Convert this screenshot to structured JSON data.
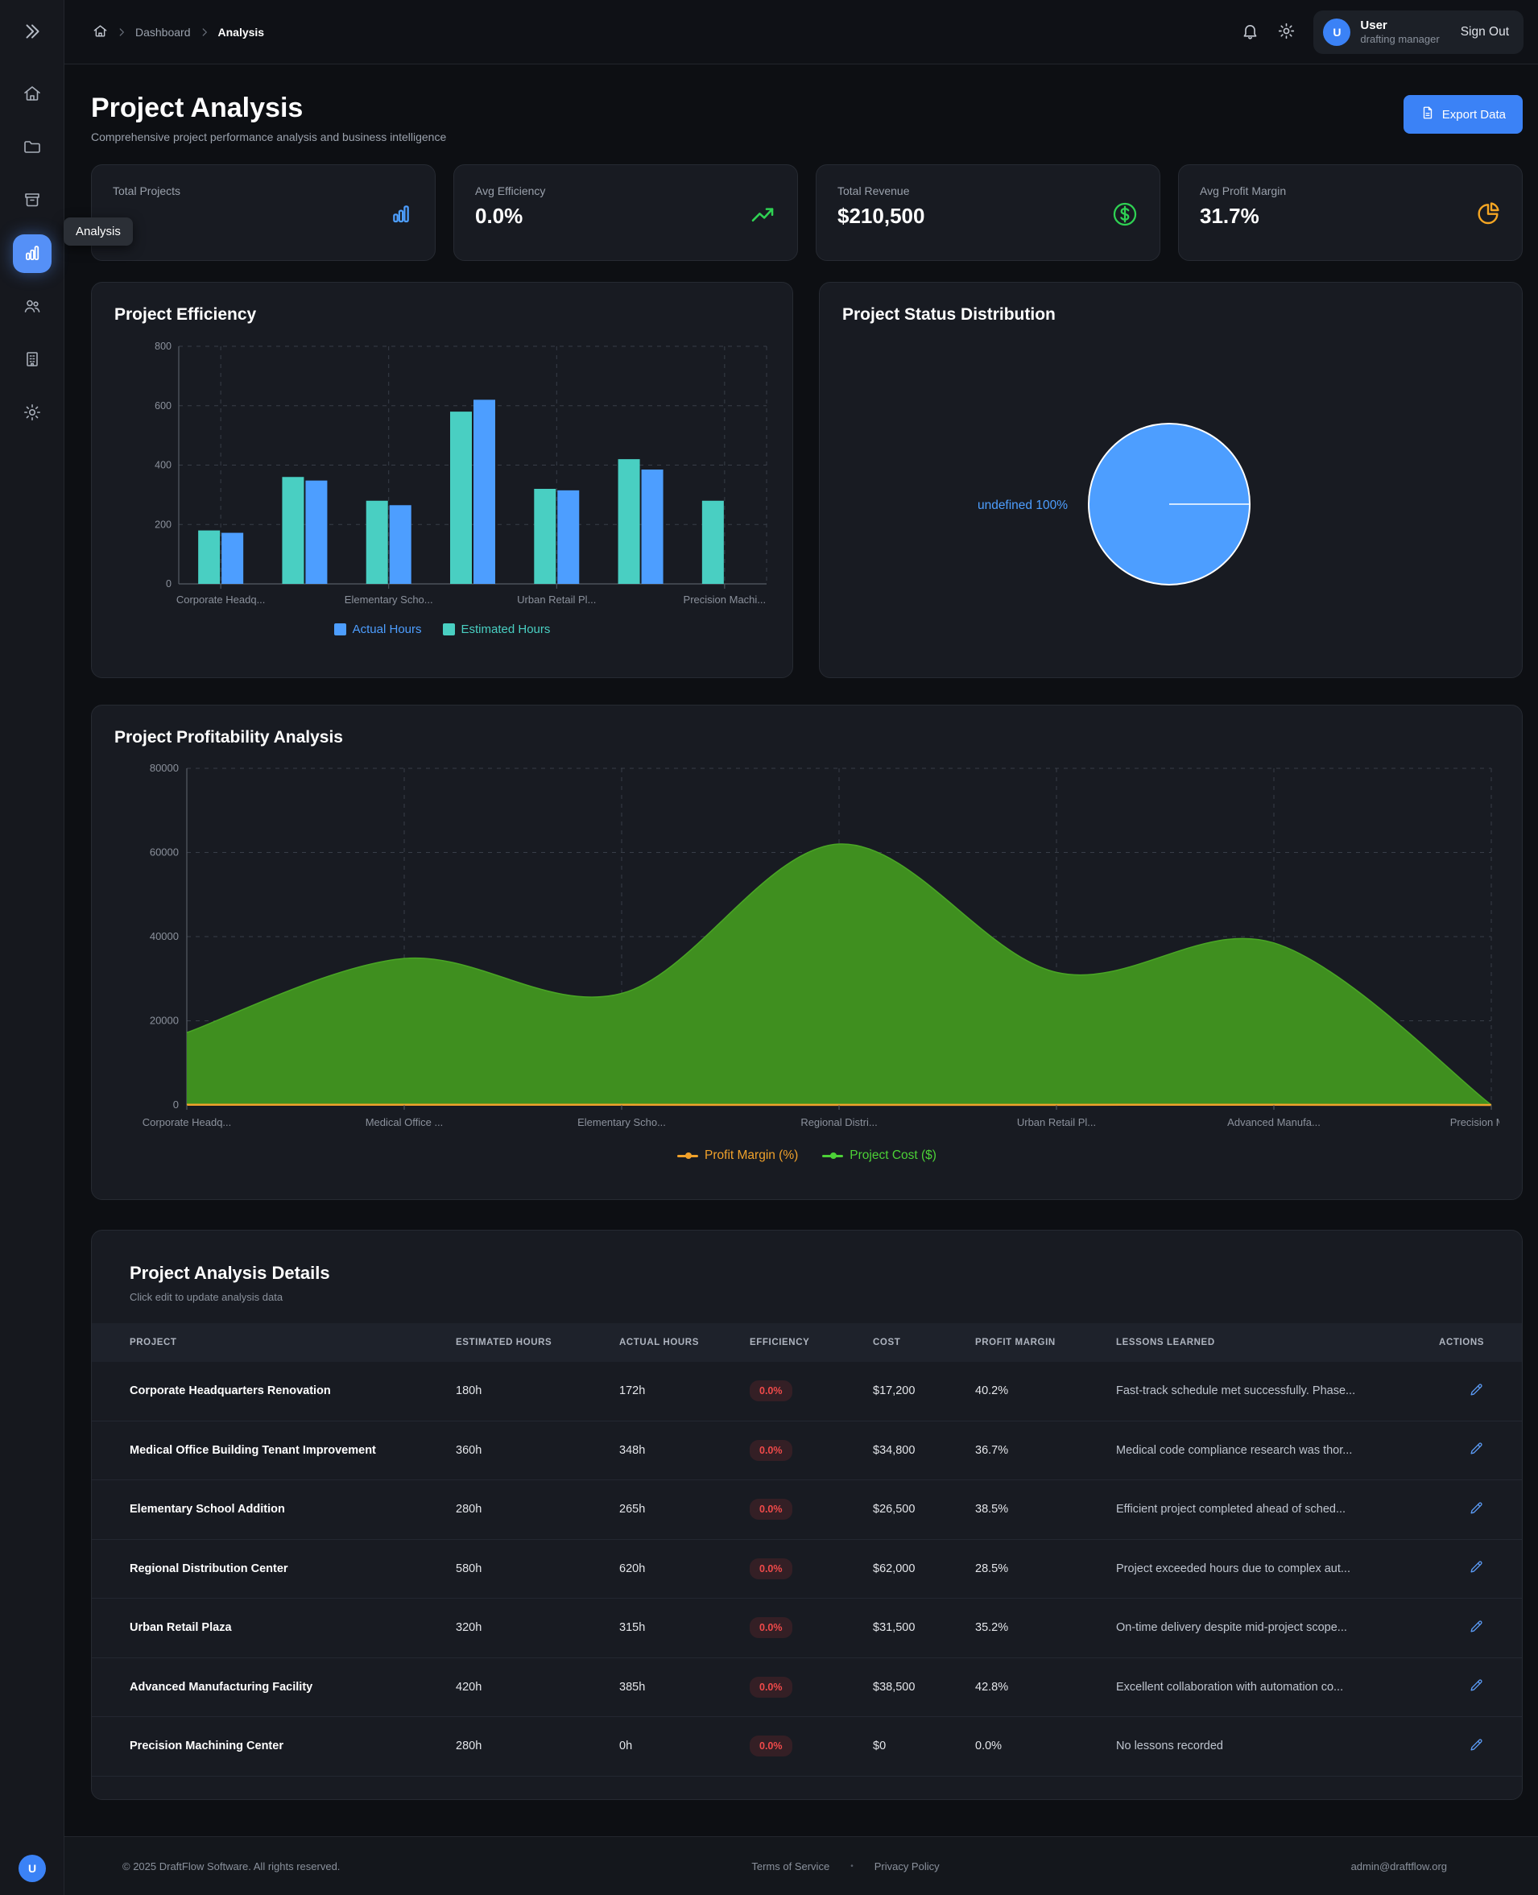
{
  "navbar": {
    "breadcrumb": {
      "parent": "Dashboard",
      "current": "Analysis"
    },
    "user": {
      "initial": "U",
      "name": "User",
      "role": "drafting manager",
      "sign_out_label": "Sign Out"
    }
  },
  "sidebar": {
    "tooltip": "Analysis",
    "active_item": "analysis",
    "items": [
      "home",
      "projects",
      "archive",
      "analysis",
      "users",
      "company",
      "settings"
    ],
    "avatar_initial": "U"
  },
  "header": {
    "title": "Project Analysis",
    "subtitle": "Comprehensive project performance analysis and business intelligence",
    "export_button": "Export Data"
  },
  "stats": [
    {
      "label": "Total Projects",
      "value": "",
      "icon": "bar-chart-icon",
      "accent": "#4d9eff"
    },
    {
      "label": "Avg Efficiency",
      "value": "0.0%",
      "icon": "trending-up-icon",
      "accent": "#2fd153"
    },
    {
      "label": "Total Revenue",
      "value": "$210,500",
      "icon": "dollar-circle-icon",
      "accent": "#2fd153"
    },
    {
      "label": "Avg Profit Margin",
      "value": "31.7%",
      "icon": "pie-chart-icon",
      "accent": "#f5a623"
    }
  ],
  "chart_data": [
    {
      "type": "bar",
      "title": "Project Efficiency",
      "categories": [
        "Corporate Headquarters Renovation",
        "Medical Office Building Tenant Improvement",
        "Elementary School Addition",
        "Regional Distribution Center",
        "Urban Retail Plaza",
        "Advanced Manufacturing Facility",
        "Precision Machining Center"
      ],
      "x_tick_labels": [
        "Corporate Headq...",
        "Elementary Scho...",
        "Urban Retail Pl...",
        "Precision Machi..."
      ],
      "x_tick_positions": [
        0,
        2,
        4,
        6
      ],
      "series": [
        {
          "name": "Actual Hours",
          "color": "#4d9eff",
          "values": [
            172,
            348,
            265,
            620,
            315,
            385,
            0
          ]
        },
        {
          "name": "Estimated Hours",
          "color": "#49cfc2",
          "values": [
            180,
            360,
            280,
            580,
            320,
            420,
            280
          ]
        }
      ],
      "ylim": [
        0,
        800
      ],
      "y_ticks": [
        0,
        200,
        400,
        600,
        800
      ],
      "grid": true,
      "legend_position": "bottom"
    },
    {
      "type": "pie",
      "title": "Project Status Distribution",
      "slices": [
        {
          "label": "undefined",
          "percent": 100,
          "display_label": "undefined 100%",
          "color": "#4d9eff"
        }
      ]
    },
    {
      "type": "area",
      "title": "Project Profitability Analysis",
      "categories": [
        "Corporate Headq...",
        "Medical Office ...",
        "Elementary Scho...",
        "Regional Distri...",
        "Urban Retail Pl...",
        "Advanced Manufa...",
        "Precision Machi..."
      ],
      "series": [
        {
          "name": "Profit Margin (%)",
          "color": "#f0a12b",
          "values": [
            40.2,
            36.7,
            38.5,
            28.5,
            35.2,
            42.8,
            0.0
          ]
        },
        {
          "name": "Project Cost ($)",
          "color": "#3f8f1f",
          "values": [
            17200,
            34800,
            26500,
            62000,
            31500,
            38500,
            0
          ]
        }
      ],
      "ylim": [
        0,
        80000
      ],
      "y_ticks": [
        0,
        20000,
        40000,
        60000,
        80000
      ],
      "grid": true,
      "legend_position": "bottom"
    }
  ],
  "table": {
    "title": "Project Analysis Details",
    "subtitle": "Click edit to update analysis data",
    "columns": [
      "Project",
      "Estimated Hours",
      "Actual Hours",
      "Efficiency",
      "Cost",
      "Profit Margin",
      "Lessons Learned",
      "Actions"
    ],
    "rows": [
      {
        "project": "Corporate Headquarters Renovation",
        "estimated": "180h",
        "actual": "172h",
        "efficiency": "0.0%",
        "cost": "$17,200",
        "margin": "40.2%",
        "lessons": "Fast-track schedule met successfully. Phase..."
      },
      {
        "project": "Medical Office Building Tenant Improvement",
        "estimated": "360h",
        "actual": "348h",
        "efficiency": "0.0%",
        "cost": "$34,800",
        "margin": "36.7%",
        "lessons": "Medical code compliance research was thor..."
      },
      {
        "project": "Elementary School Addition",
        "estimated": "280h",
        "actual": "265h",
        "efficiency": "0.0%",
        "cost": "$26,500",
        "margin": "38.5%",
        "lessons": "Efficient project completed ahead of sched..."
      },
      {
        "project": "Regional Distribution Center",
        "estimated": "580h",
        "actual": "620h",
        "efficiency": "0.0%",
        "cost": "$62,000",
        "margin": "28.5%",
        "lessons": "Project exceeded hours due to complex aut..."
      },
      {
        "project": "Urban Retail Plaza",
        "estimated": "320h",
        "actual": "315h",
        "efficiency": "0.0%",
        "cost": "$31,500",
        "margin": "35.2%",
        "lessons": "On-time delivery despite mid-project scope..."
      },
      {
        "project": "Advanced Manufacturing Facility",
        "estimated": "420h",
        "actual": "385h",
        "efficiency": "0.0%",
        "cost": "$38,500",
        "margin": "42.8%",
        "lessons": "Excellent collaboration with automation co..."
      },
      {
        "project": "Precision Machining Center",
        "estimated": "280h",
        "actual": "0h",
        "efficiency": "0.0%",
        "cost": "$0",
        "margin": "0.0%",
        "lessons": "No lessons recorded"
      }
    ]
  },
  "footer": {
    "copyright": "© 2025 DraftFlow Software. All rights reserved.",
    "links": [
      "Terms of Service",
      "Privacy Policy"
    ],
    "email": "admin@draftflow.org"
  }
}
